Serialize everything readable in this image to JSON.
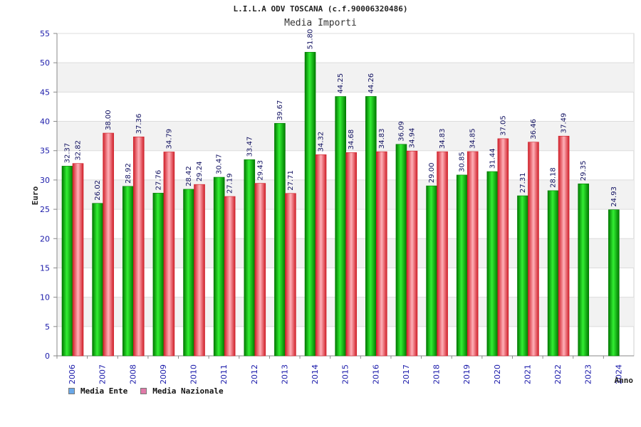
{
  "chart_data": {
    "type": "bar",
    "title": "L.I.L.A ODV TOSCANA (c.f.90006320486)",
    "subtitle": "Media Importi",
    "xlabel": "Anno",
    "ylabel": "Euro",
    "ylim": [
      0,
      55
    ],
    "yticks": [
      "0",
      "5",
      "10",
      "15",
      "20",
      "25",
      "30",
      "35",
      "40",
      "45",
      "50",
      "55"
    ],
    "categories": [
      "2006",
      "2007",
      "2008",
      "2009",
      "2010",
      "2011",
      "2012",
      "2013",
      "2014",
      "2015",
      "2016",
      "2017",
      "2018",
      "2019",
      "2020",
      "2021",
      "2022",
      "2023",
      "2024"
    ],
    "series": [
      {
        "name": "Media Ente",
        "values": [
          32.37,
          26.02,
          28.92,
          27.76,
          28.42,
          30.47,
          33.47,
          39.67,
          51.8,
          44.25,
          44.26,
          36.09,
          29.0,
          30.85,
          31.44,
          27.31,
          28.18,
          29.35,
          24.93
        ],
        "labels": [
          "32.37",
          "26.02",
          "28.92",
          "27.76",
          "28.42",
          "30.47",
          "33.47",
          "39.67",
          "51.80",
          "44.25",
          "44.26",
          "36.09",
          "29.00",
          "30.85",
          "31.44",
          "27.31",
          "28.18",
          "29.35",
          "24.93"
        ]
      },
      {
        "name": "Media Nazionale",
        "values": [
          32.82,
          38.0,
          37.36,
          34.79,
          29.24,
          27.19,
          29.43,
          27.71,
          34.32,
          34.68,
          34.83,
          34.94,
          34.83,
          34.85,
          37.05,
          36.46,
          37.49,
          null,
          null
        ],
        "labels": [
          "32.82",
          "38.00",
          "37.36",
          "34.79",
          "29.24",
          "27.19",
          "29.43",
          "27.71",
          "34.32",
          "34.68",
          "34.83",
          "34.94",
          "34.83",
          "34.85",
          "37.05",
          "36.46",
          "37.49",
          "",
          ""
        ]
      }
    ],
    "legend": [
      "Media Ente",
      "Media Nazionale"
    ],
    "legend_position": "bottom-left"
  },
  "colors": {
    "ente_dark": "#007a00",
    "ente_light": "#33ee33",
    "nazionale_dark": "#d0202a",
    "nazionale_light": "#ffb0b8",
    "legend_ente": "#6aa8e8",
    "legend_nazionale": "#e07aa8",
    "band": "#f2f2f2",
    "grid": "#dcdcdc"
  }
}
